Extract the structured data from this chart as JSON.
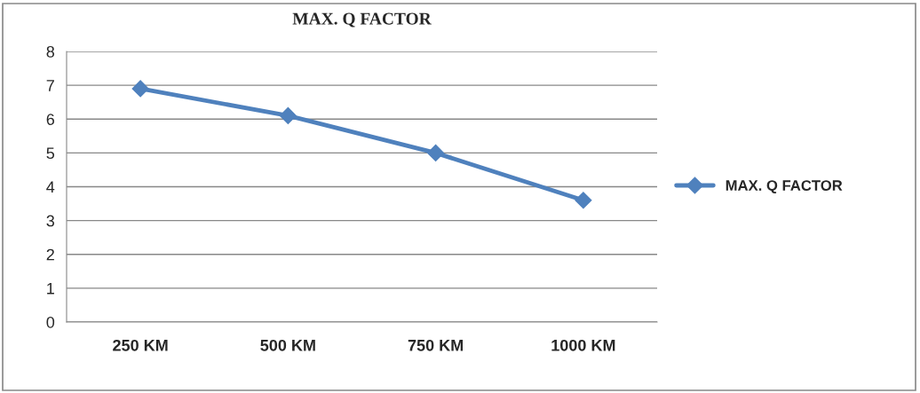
{
  "chart_data": {
    "type": "line",
    "title": "MAX. Q FACTOR",
    "categories": [
      "250 KM",
      "500 KM",
      "750 KM",
      "1000 KM"
    ],
    "series": [
      {
        "name": "MAX. Q FACTOR",
        "color": "#4f81bd",
        "values": [
          6.9,
          6.1,
          5.0,
          3.6
        ]
      }
    ],
    "ylim": [
      0,
      8
    ],
    "yticks": [
      0,
      1,
      2,
      3,
      4,
      5,
      6,
      7,
      8
    ],
    "grid": "y",
    "legend": "right",
    "marker": "diamond",
    "line_style": "solid"
  }
}
